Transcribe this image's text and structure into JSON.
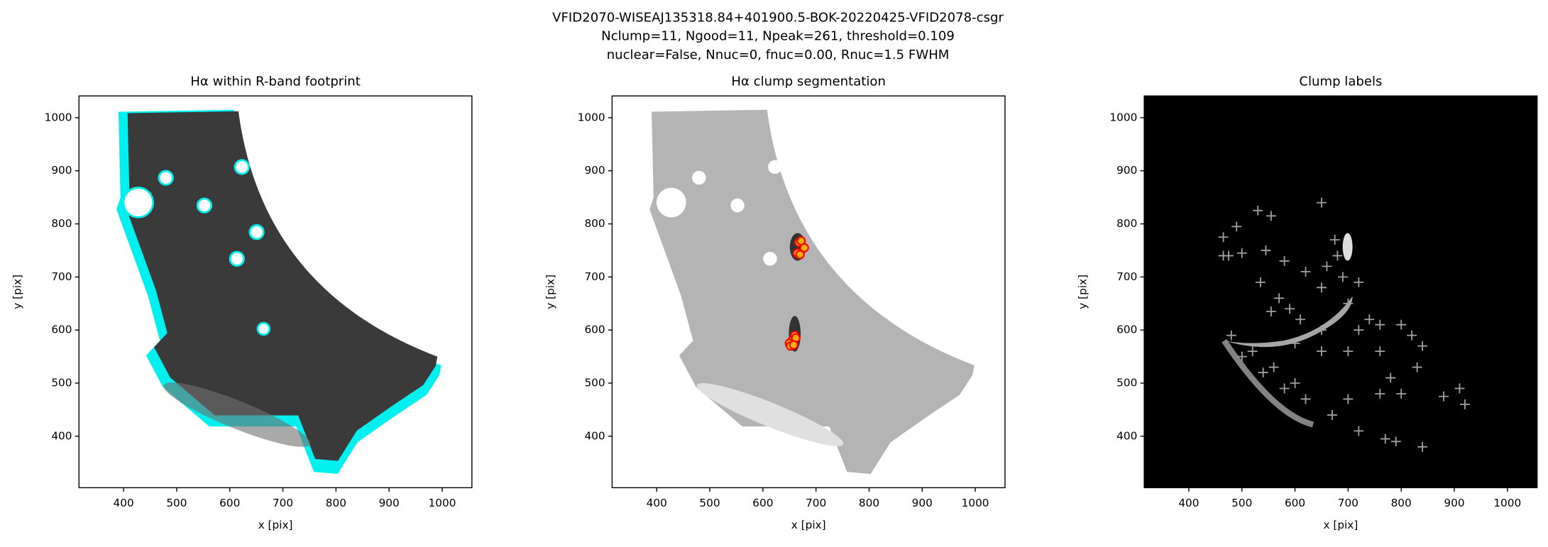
{
  "title": [
    "VFID2070-WISEAJ135318.84+401900.5-BOK-20220425-VFID2078-csgr",
    "Nclump=11, Ngood=11, Npeak=261, threshold=0.109",
    "nuclear=False, Nnuc=0, fnuc=0.00, Rnuc=1.5 FWHM"
  ],
  "chart_data": [
    {
      "type": "image",
      "title": "Hα within R-band footprint",
      "x_label": "x [pix]",
      "y_label": "y [pix]",
      "xlim": [
        316,
        1056
      ],
      "ylim": [
        303,
        1041
      ],
      "xticks": [
        400,
        500,
        600,
        700,
        800,
        900,
        1000
      ],
      "yticks": [
        400,
        500,
        600,
        700,
        800,
        900,
        1000
      ]
    },
    {
      "type": "scatter",
      "title": "Hα clump segmentation",
      "x_label": "x [pix]",
      "y_label": "y [pix]",
      "xlim": [
        316,
        1056
      ],
      "ylim": [
        303,
        1041
      ],
      "xticks": [
        400,
        500,
        600,
        700,
        800,
        900,
        1000
      ],
      "yticks": [
        400,
        500,
        600,
        700,
        800,
        900,
        1000
      ],
      "marker": "circle",
      "color": "#ff0000",
      "x": [
        668,
        672,
        678,
        665,
        670,
        660,
        655,
        650,
        652,
        662,
        658
      ],
      "y": [
        765,
        768,
        755,
        745,
        742,
        590,
        580,
        575,
        570,
        585,
        572
      ]
    },
    {
      "type": "scatter",
      "title": "Clump labels",
      "x_label": "x [pix]",
      "y_label": "y [pix]",
      "xlim": [
        316,
        1056
      ],
      "ylim": [
        303,
        1041
      ],
      "xticks": [
        400,
        500,
        600,
        700,
        800,
        900,
        1000
      ],
      "yticks": [
        400,
        500,
        600,
        700,
        800,
        900,
        1000
      ],
      "marker": "plus",
      "color": "#a0a0a0",
      "x": [
        465,
        465,
        475,
        490,
        530,
        555,
        650,
        545,
        500,
        580,
        620,
        535,
        570,
        590,
        555,
        610,
        650,
        660,
        675,
        680,
        690,
        720,
        700,
        740,
        760,
        800,
        820,
        840,
        830,
        780,
        800,
        760,
        700,
        670,
        620,
        600,
        560,
        520,
        480,
        500,
        540,
        580,
        720,
        770,
        790,
        840,
        880,
        910,
        920,
        700,
        650,
        760,
        720,
        600,
        650
      ],
      "y": [
        775,
        740,
        740,
        795,
        825,
        815,
        840,
        750,
        745,
        730,
        710,
        690,
        660,
        640,
        635,
        620,
        680,
        720,
        770,
        740,
        700,
        690,
        650,
        620,
        610,
        610,
        590,
        570,
        530,
        510,
        480,
        480,
        470,
        440,
        470,
        500,
        530,
        560,
        590,
        550,
        520,
        490,
        410,
        395,
        390,
        380,
        475,
        490,
        460,
        560,
        560,
        560,
        600,
        575,
        600
      ]
    }
  ]
}
